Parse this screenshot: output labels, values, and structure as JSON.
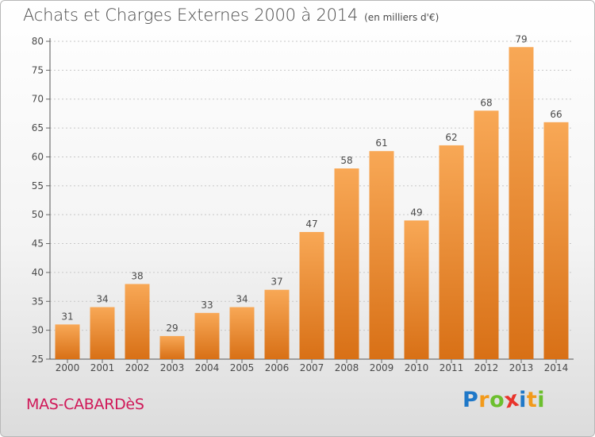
{
  "title": "Achats et Charges Externes 2000 à 2014",
  "unit": "(en milliers d'€)",
  "city": "MAS-CABARDèS",
  "brand": {
    "letters": [
      "P",
      "r",
      "o",
      "x",
      "i",
      "t",
      "i"
    ],
    "colors": [
      "#1f78c8",
      "#f29a1a",
      "#6cbf2e",
      "#e8342c",
      "#1f78c8",
      "#f29a1a",
      "#6cbf2e"
    ]
  },
  "colors": {
    "bar_light": "#f8a856",
    "bar_dark": "#d87016",
    "city": "#d01858",
    "text": "#4a4a4a",
    "grid": "#c8c8c8"
  },
  "chart_data": {
    "type": "bar",
    "categories": [
      "2000",
      "2001",
      "2002",
      "2003",
      "2004",
      "2005",
      "2006",
      "2007",
      "2008",
      "2009",
      "2010",
      "2011",
      "2012",
      "2013",
      "2014"
    ],
    "values": [
      31,
      34,
      38,
      29,
      33,
      34,
      37,
      47,
      58,
      61,
      49,
      62,
      68,
      79,
      66
    ],
    "ylim": [
      25,
      80
    ],
    "yticks": [
      25,
      30,
      35,
      40,
      45,
      50,
      55,
      60,
      65,
      70,
      75,
      80
    ],
    "grid": true,
    "data_labels": true
  }
}
